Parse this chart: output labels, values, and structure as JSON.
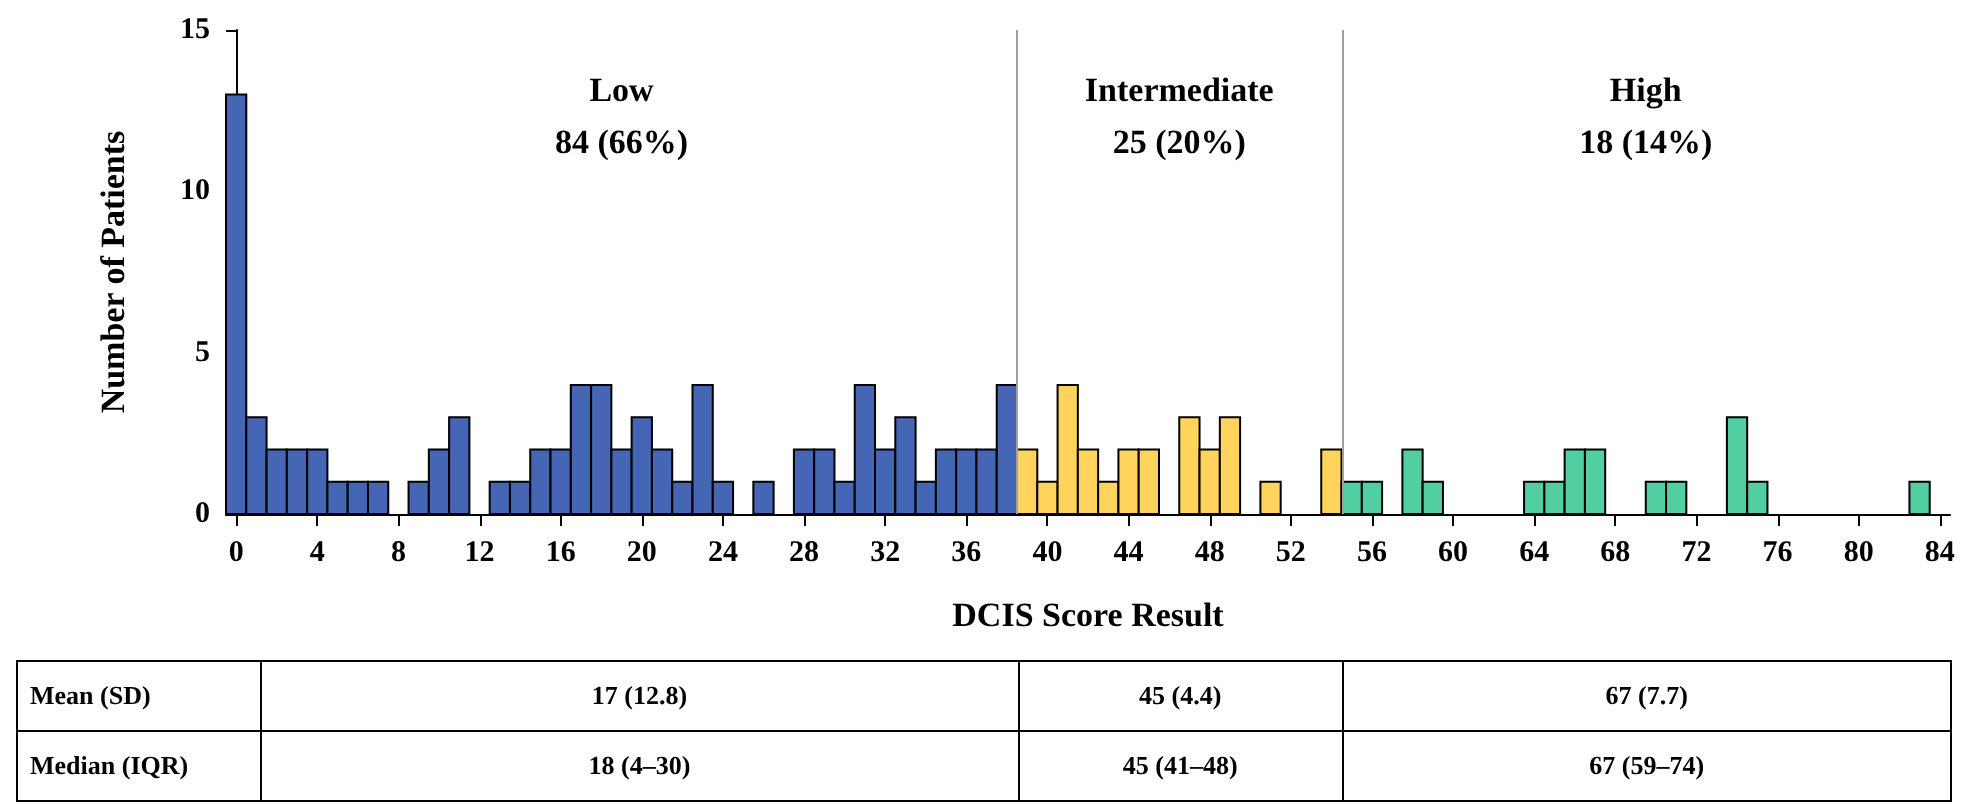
{
  "chart_data": {
    "type": "histogram",
    "xlabel": "DCIS Score Result",
    "ylabel": "Number of Patients",
    "bins": [
      -0.5,
      0.5,
      1.5,
      2.5,
      3.5,
      4.5,
      5.5,
      6.5,
      7.5,
      8.5,
      9.5,
      10.5,
      11.5,
      12.5,
      13.5,
      14.5,
      15.5,
      16.5,
      17.5,
      18.5,
      19.5,
      20.5,
      21.5,
      22.5,
      23.5,
      24.5,
      25.5,
      26.5,
      27.5,
      28.5,
      29.5,
      30.5,
      31.5,
      32.5,
      33.5,
      34.5,
      35.5,
      36.5,
      37.5,
      38.5,
      39.5,
      40.5,
      41.5,
      42.5,
      43.5,
      44.5,
      45.5,
      46.5,
      47.5,
      48.5,
      49.5,
      50.5,
      51.5,
      52.5,
      53.5,
      54.5,
      55.5,
      56.5,
      57.5,
      58.5,
      59.5,
      60.5,
      61.5,
      62.5,
      63.5,
      64.5,
      65.5,
      66.5,
      67.5,
      68.5,
      69.5,
      70.5,
      71.5,
      72.5,
      73.5,
      74.5,
      75.5,
      76.5,
      77.5,
      78.5,
      79.5,
      80.5,
      81.5,
      82.5,
      83.5,
      84.5
    ],
    "series": [
      {
        "color": "#4565b5",
        "values": [
          13,
          3,
          2,
          2,
          2,
          1,
          1,
          1,
          0,
          1,
          2,
          3,
          0,
          1,
          1,
          2,
          2,
          4,
          4,
          2,
          3,
          2,
          1,
          4,
          1,
          0,
          1,
          0,
          2,
          2,
          1,
          4,
          2,
          3,
          1,
          2,
          2,
          2,
          4,
          null,
          null,
          null,
          null,
          null,
          null,
          null,
          null,
          null,
          null,
          null,
          null,
          null,
          null,
          null,
          null,
          null,
          null,
          null,
          null,
          null,
          null,
          null,
          null,
          null,
          null,
          null,
          null,
          null,
          null,
          null,
          null,
          null,
          null,
          null,
          null,
          null,
          null,
          null,
          null,
          null,
          null,
          null,
          null,
          null,
          null
        ]
      },
      {
        "color": "#ffd35c",
        "values": [
          null,
          null,
          null,
          null,
          null,
          null,
          null,
          null,
          null,
          null,
          null,
          null,
          null,
          null,
          null,
          null,
          null,
          null,
          null,
          null,
          null,
          null,
          null,
          null,
          null,
          null,
          null,
          null,
          null,
          null,
          null,
          null,
          null,
          null,
          null,
          null,
          null,
          null,
          null,
          2,
          1,
          4,
          2,
          1,
          2,
          2,
          0,
          3,
          2,
          3,
          0,
          1,
          0,
          0,
          2,
          null,
          null,
          null,
          null,
          null,
          null,
          null,
          null,
          null,
          null,
          null,
          null,
          null,
          null,
          null,
          null,
          null,
          null,
          null,
          null,
          null,
          null,
          null,
          null,
          null,
          null,
          null,
          null,
          null,
          null
        ]
      },
      {
        "color": "#52cfa0",
        "values": [
          null,
          null,
          null,
          null,
          null,
          null,
          null,
          null,
          null,
          null,
          null,
          null,
          null,
          null,
          null,
          null,
          null,
          null,
          null,
          null,
          null,
          null,
          null,
          null,
          null,
          null,
          null,
          null,
          null,
          null,
          null,
          null,
          null,
          null,
          null,
          null,
          null,
          null,
          null,
          null,
          null,
          null,
          null,
          null,
          null,
          null,
          null,
          null,
          null,
          null,
          null,
          null,
          null,
          null,
          null,
          1,
          1,
          0,
          2,
          1,
          0,
          0,
          0,
          0,
          1,
          1,
          2,
          2,
          0,
          0,
          1,
          1,
          0,
          0,
          3,
          1,
          0,
          0,
          0,
          0,
          0,
          0,
          0,
          1,
          0
        ]
      }
    ],
    "xlim": [
      -0.5,
      84.5
    ],
    "xticks": [
      0,
      4,
      8,
      12,
      16,
      20,
      24,
      28,
      32,
      36,
      40,
      44,
      48,
      52,
      56,
      60,
      64,
      68,
      72,
      76,
      80,
      84
    ],
    "ylim": [
      0,
      15
    ],
    "yticks": [
      0,
      5,
      10,
      15
    ],
    "ref_lines": [
      {
        "axis": "x",
        "value": 38.5,
        "color": "#a0a0a0"
      },
      {
        "axis": "x",
        "value": 54.5,
        "color": "#a0a0a0"
      }
    ],
    "annotations": [
      "Low\n84 (66%)",
      "Intermediate\n25 (20%)",
      "High\n18 (14%)",
      "Mean (SD)",
      "17 (12.8)",
      "45 (4.4)",
      "67 (7.7)",
      "Median (IQR)",
      "18 (4–30)",
      "45 (41–48)",
      "67 (59–74)"
    ],
    "grid": false
  }
}
